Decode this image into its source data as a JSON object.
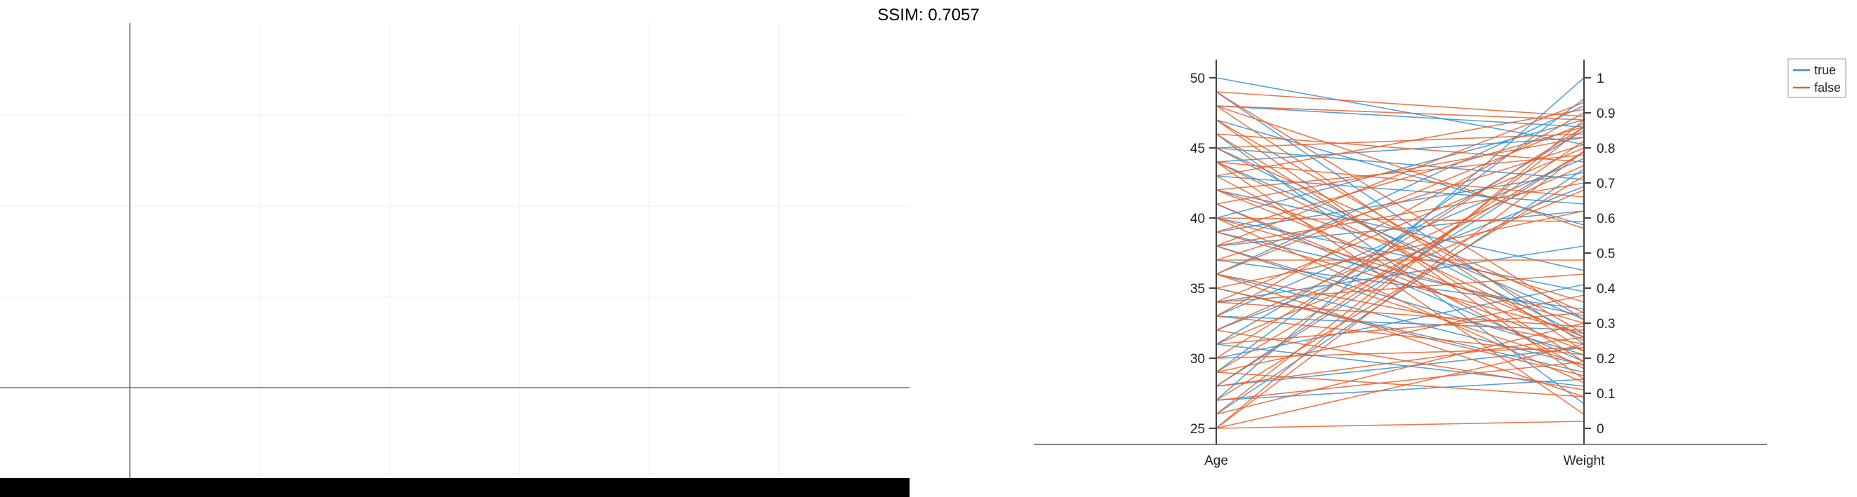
{
  "title": "SSIM: 0.7057",
  "colors": {
    "true": "#3a8fd0",
    "false": "#e8602c",
    "axis": "#555555",
    "grid": "#ececec",
    "bottom_bar": "#000000"
  },
  "left_panel": {
    "type": "blank",
    "grid": true
  },
  "chart_data": {
    "type": "parallel-coordinates",
    "axes": [
      "Age",
      "Weight"
    ],
    "left_axis": {
      "label": "Age",
      "range": [
        25,
        50
      ],
      "ticks": [
        "50",
        "45",
        "40",
        "35",
        "30",
        "25"
      ]
    },
    "right_axis": {
      "label": "Weight",
      "range": [
        0,
        1
      ],
      "ticks": [
        "1",
        "0.9",
        "0.8",
        "0.7",
        "0.6",
        "0.5",
        "0.4",
        "0.3",
        "0.2",
        "0.1",
        "0"
      ]
    },
    "legend": {
      "position": "top-right",
      "entries": [
        "true",
        "false"
      ]
    },
    "series": [
      {
        "name": "true",
        "lines": [
          [
            50,
            0.81
          ],
          [
            49,
            0.24
          ],
          [
            48,
            0.86
          ],
          [
            47,
            0.58
          ],
          [
            46,
            0.07
          ],
          [
            45,
            0.71
          ],
          [
            44,
            0.83
          ],
          [
            44,
            0.31
          ],
          [
            43,
            0.64
          ],
          [
            42,
            0.45
          ],
          [
            41,
            0.19
          ],
          [
            40,
            0.88
          ],
          [
            40,
            0.39
          ],
          [
            39,
            0.73
          ],
          [
            38,
            0.21
          ],
          [
            38,
            0.62
          ],
          [
            37,
            0.34
          ],
          [
            36,
            0.92
          ],
          [
            35,
            0.16
          ],
          [
            34,
            0.52
          ],
          [
            33,
            0.77
          ],
          [
            33,
            0.28
          ],
          [
            32,
            0.69
          ],
          [
            31,
            0.12
          ],
          [
            31,
            0.85
          ],
          [
            30,
            0.41
          ],
          [
            29,
            0.94
          ],
          [
            28,
            0.23
          ],
          [
            28,
            0.79
          ],
          [
            27,
            0.14
          ],
          [
            27,
            1.0
          ],
          [
            26,
            0.74
          ],
          [
            45,
            0.26
          ],
          [
            39,
            0.32
          ],
          [
            36,
            0.18
          ]
        ]
      },
      {
        "name": "false",
        "lines": [
          [
            49,
            0.31
          ],
          [
            49,
            0.89
          ],
          [
            48,
            0.22
          ],
          [
            48,
            0.57
          ],
          [
            48,
            0.88
          ],
          [
            47,
            0.27
          ],
          [
            47,
            0.14
          ],
          [
            46,
            0.76
          ],
          [
            46,
            0.19
          ],
          [
            45,
            0.84
          ],
          [
            45,
            0.33
          ],
          [
            44,
            0.66
          ],
          [
            44,
            0.25
          ],
          [
            43,
            0.91
          ],
          [
            43,
            0.17
          ],
          [
            42,
            0.78
          ],
          [
            42,
            0.36
          ],
          [
            41,
            0.83
          ],
          [
            41,
            0.22
          ],
          [
            40,
            0.59
          ],
          [
            40,
            0.13
          ],
          [
            39,
            0.86
          ],
          [
            39,
            0.27
          ],
          [
            38,
            0.7
          ],
          [
            38,
            0.18
          ],
          [
            37,
            0.81
          ],
          [
            37,
            0.48
          ],
          [
            36,
            0.24
          ],
          [
            36,
            0.87
          ],
          [
            35,
            0.15
          ],
          [
            35,
            0.62
          ],
          [
            34,
            0.8
          ],
          [
            34,
            0.29
          ],
          [
            33,
            0.21
          ],
          [
            33,
            0.9
          ],
          [
            32,
            0.11
          ],
          [
            32,
            0.75
          ],
          [
            31,
            0.33
          ],
          [
            31,
            0.68
          ],
          [
            30,
            0.23
          ],
          [
            30,
            0.86
          ],
          [
            29,
            0.09
          ],
          [
            29,
            0.79
          ],
          [
            28,
            0.26
          ],
          [
            28,
            0.82
          ],
          [
            27,
            0.19
          ],
          [
            27,
            0.72
          ],
          [
            26,
            0.3
          ],
          [
            26,
            0.86
          ],
          [
            25,
            0.02
          ],
          [
            25,
            0.79
          ],
          [
            25,
            0.88
          ],
          [
            25,
            0.24
          ],
          [
            44,
            0.04
          ],
          [
            40,
            0.3
          ],
          [
            36,
            0.09
          ],
          [
            38,
            0.93
          ],
          [
            42,
            0.26
          ],
          [
            34,
            0.44
          ],
          [
            29,
            0.38
          ]
        ]
      }
    ]
  }
}
